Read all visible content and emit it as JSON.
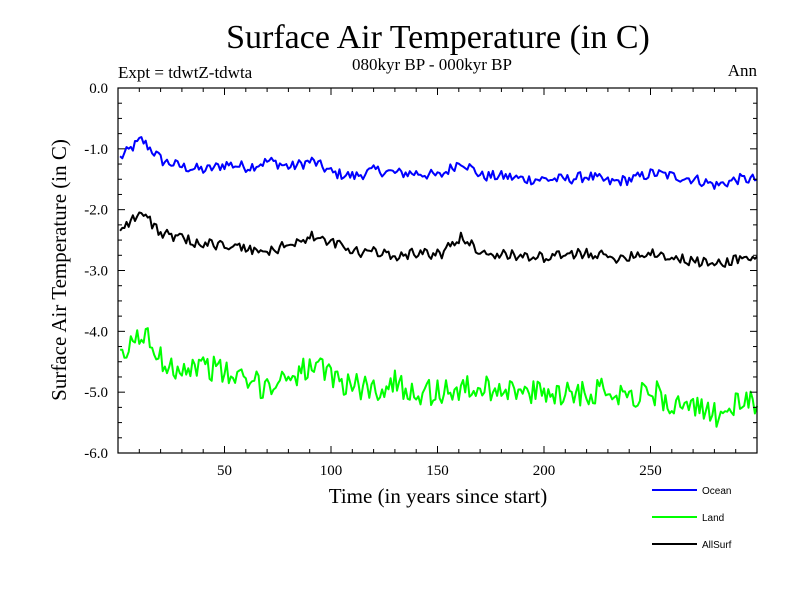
{
  "chart_data": {
    "type": "line",
    "title": "Surface Air Temperature (in C)",
    "subtitle": "080kyr BP - 000kyr BP",
    "experiment_label": "Expt = tdwtZ-tdwta",
    "season_label": "Ann",
    "xlabel": "Time (in years since start)",
    "ylabel": "Surface Air Temperature (in C)",
    "xlim": [
      0,
      300
    ],
    "ylim": [
      -6.0,
      0.0
    ],
    "x_ticks": [
      50,
      100,
      150,
      200,
      250
    ],
    "x_tick_labels": [
      "50",
      "100",
      "150",
      "200",
      "250"
    ],
    "y_ticks": [
      0.0,
      -1.0,
      -2.0,
      -3.0,
      -4.0,
      -5.0,
      -6.0
    ],
    "y_tick_labels": [
      "0.0",
      "-1.0",
      "-2.0",
      "-3.0",
      "-4.0",
      "-5.0",
      "-6.0"
    ],
    "grid": false,
    "legend_position": "bottom-right, below plot",
    "series": [
      {
        "name": "Ocean",
        "color": "#0000ff",
        "x_start": 1,
        "x_step": 10,
        "values": [
          -1.15,
          -0.85,
          -1.2,
          -1.3,
          -1.35,
          -1.25,
          -1.3,
          -1.2,
          -1.3,
          -1.2,
          -1.4,
          -1.45,
          -1.35,
          -1.4,
          -1.4,
          -1.45,
          -1.2,
          -1.45,
          -1.45,
          -1.5,
          -1.5,
          -1.5,
          -1.45,
          -1.55,
          -1.5,
          -1.4,
          -1.45,
          -1.5,
          -1.6,
          -1.5
        ]
      },
      {
        "name": "Land",
        "color": "#00ff00",
        "x_start": 1,
        "x_step": 10,
        "values": [
          -4.5,
          -4.0,
          -4.5,
          -4.6,
          -4.55,
          -4.7,
          -4.85,
          -4.9,
          -4.7,
          -4.6,
          -4.75,
          -4.9,
          -4.95,
          -4.85,
          -5.0,
          -5.0,
          -4.95,
          -4.95,
          -4.9,
          -5.05,
          -5.0,
          -5.0,
          -5.0,
          -4.95,
          -5.05,
          -5.0,
          -5.2,
          -5.3,
          -5.35,
          -5.2
        ]
      },
      {
        "name": "AllSurf",
        "color": "#000000",
        "x_start": 1,
        "x_step": 10,
        "values": [
          -2.3,
          -2.05,
          -2.4,
          -2.5,
          -2.55,
          -2.6,
          -2.65,
          -2.7,
          -2.55,
          -2.45,
          -2.55,
          -2.7,
          -2.7,
          -2.75,
          -2.7,
          -2.75,
          -2.45,
          -2.7,
          -2.75,
          -2.75,
          -2.8,
          -2.75,
          -2.7,
          -2.8,
          -2.75,
          -2.7,
          -2.8,
          -2.85,
          -2.9,
          -2.8
        ]
      }
    ]
  }
}
